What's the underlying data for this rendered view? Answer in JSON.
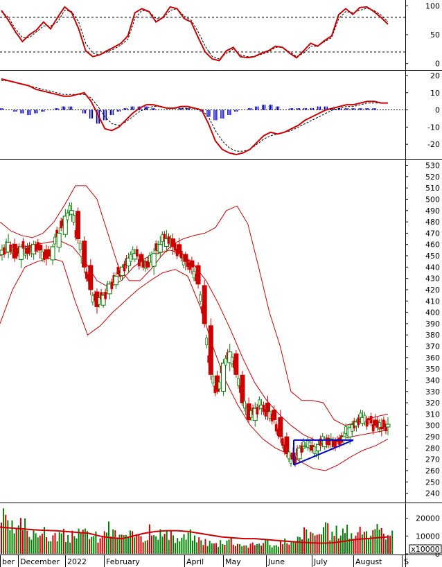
{
  "chart_data": [
    {
      "panel": "stochastic-oscillator",
      "type": "line",
      "yticks": [
        0,
        50,
        100
      ],
      "ylim": [
        -10,
        110
      ],
      "reference_lines": [
        20,
        80
      ],
      "series": [
        {
          "color": "#cc0000",
          "values": [
            92,
            75,
            55,
            38,
            50,
            58,
            72,
            60,
            80,
            98,
            88,
            60,
            22,
            12,
            15,
            22,
            28,
            35,
            48,
            88,
            95,
            90,
            72,
            80,
            98,
            95,
            78,
            72,
            45,
            20,
            8,
            5,
            22,
            28,
            12,
            10,
            12,
            18,
            22,
            30,
            28,
            18,
            10,
            22,
            35,
            30,
            40,
            48,
            85,
            95,
            85,
            97,
            98,
            90,
            80,
            68
          ]
        },
        {
          "color": "#000000",
          "values": [
            90,
            80,
            60,
            45,
            45,
            55,
            65,
            65,
            72,
            92,
            90,
            72,
            35,
            18,
            15,
            20,
            25,
            32,
            42,
            78,
            92,
            90,
            78,
            78,
            92,
            95,
            82,
            75,
            55,
            30,
            12,
            8,
            18,
            25,
            15,
            12,
            12,
            16,
            20,
            28,
            28,
            20,
            12,
            18,
            30,
            30,
            38,
            45,
            78,
            90,
            88,
            92,
            96,
            92,
            84,
            72
          ]
        }
      ]
    },
    {
      "panel": "macd",
      "type": "line",
      "yticks": [
        -20,
        -10,
        0,
        10,
        20
      ],
      "ylim": [
        -28,
        22
      ],
      "series": [
        {
          "color": "#cc0000",
          "values": [
            18,
            17,
            16,
            15,
            14,
            12,
            11,
            10,
            9,
            8,
            8,
            9,
            10,
            5,
            -3,
            -11,
            -12,
            -10,
            -6,
            -2,
            1,
            3,
            3,
            2,
            1,
            1,
            2,
            2,
            1,
            0,
            -8,
            -18,
            -23,
            -25,
            -26,
            -25,
            -23,
            -19,
            -15,
            -13,
            -14,
            -13,
            -11,
            -9,
            -6,
            -4,
            -2,
            0,
            1,
            2,
            3,
            3,
            4,
            5,
            5,
            4,
            4
          ]
        },
        {
          "color": "#000000",
          "values": [
            17,
            17,
            16,
            15,
            14,
            13,
            12,
            11,
            10,
            9,
            9,
            9,
            9,
            7,
            2,
            -4,
            -8,
            -9,
            -7,
            -4,
            -1,
            1,
            2,
            2,
            1,
            1,
            1,
            1,
            1,
            0,
            -4,
            -12,
            -18,
            -22,
            -24,
            -24,
            -23,
            -20,
            -17,
            -15,
            -14,
            -13,
            -12,
            -10,
            -8,
            -6,
            -4,
            -2,
            0,
            1,
            2,
            2,
            3,
            4,
            4,
            4,
            4
          ]
        },
        {
          "color": "#0000cc",
          "type": "bar",
          "values": [
            1,
            0,
            -1,
            -2,
            -3,
            -2,
            -1,
            0,
            1,
            2,
            2,
            0,
            -2,
            -5,
            -8,
            -6,
            -3,
            -1,
            1,
            2,
            2,
            2,
            1,
            0,
            0,
            0,
            1,
            1,
            0,
            -1,
            -4,
            -6,
            -5,
            -3,
            -1,
            0,
            1,
            2,
            3,
            3,
            2,
            0,
            1,
            1,
            1,
            1,
            2,
            2,
            1,
            1,
            1,
            1,
            1,
            1,
            1,
            0,
            0
          ]
        }
      ]
    },
    {
      "panel": "price-candlestick",
      "type": "candlestick",
      "yticks": [
        240,
        250,
        260,
        270,
        280,
        290,
        300,
        310,
        320,
        330,
        340,
        350,
        360,
        370,
        380,
        390,
        400,
        410,
        420,
        430,
        440,
        450,
        460,
        470,
        480,
        490,
        500,
        510,
        520,
        530
      ],
      "ylim": [
        233,
        534
      ],
      "close": [
        455,
        462,
        448,
        458,
        452,
        460,
        455,
        448,
        458,
        470,
        485,
        490,
        465,
        440,
        420,
        405,
        415,
        425,
        432,
        440,
        448,
        452,
        445,
        440,
        452,
        460,
        465,
        458,
        452,
        445,
        440,
        425,
        390,
        345,
        330,
        355,
        365,
        345,
        320,
        305,
        315,
        318,
        312,
        305,
        290,
        275,
        270,
        280,
        282,
        278,
        283,
        287,
        288,
        286,
        290,
        298,
        303,
        307,
        305,
        300,
        297,
        301
      ],
      "bollinger": [
        {
          "color": "#cc0000",
          "values": [
            480,
            472,
            468,
            466,
            470,
            480,
            495,
            512,
            512,
            500,
            470,
            440,
            428,
            428,
            438,
            450,
            460,
            465,
            468,
            470,
            475,
            490,
            494,
            478,
            440,
            400,
            370,
            330,
            322,
            322,
            320,
            305,
            300,
            302,
            305,
            308,
            310
          ]
        },
        {
          "color": "#cc0000",
          "values": [
            450,
            455,
            458,
            460,
            462,
            463,
            458,
            445,
            428,
            422,
            428,
            440,
            448,
            452,
            455,
            452,
            442,
            428,
            408,
            385,
            360,
            338,
            322,
            310,
            300,
            292,
            287,
            286,
            288,
            290,
            292,
            294,
            296
          ]
        },
        {
          "color": "#cc0000",
          "values": [
            390,
            420,
            440,
            445,
            448,
            445,
            410,
            380,
            388,
            400,
            410,
            420,
            428,
            435,
            438,
            432,
            405,
            370,
            340,
            318,
            300,
            288,
            280,
            275,
            268,
            262,
            260,
            265,
            272,
            278,
            282,
            288
          ]
        }
      ],
      "pattern": {
        "type": "triangle",
        "color": "#0000cc",
        "points": [
          [
            "Jun",
            287
          ],
          [
            "Jul-end",
            287
          ],
          [
            "Jun",
            265
          ]
        ]
      }
    },
    {
      "panel": "volume",
      "type": "bar",
      "unit": "x10000",
      "unit_label": "x10000",
      "yticks": [
        0,
        10000,
        20000
      ],
      "ytick_labels": [
        "0",
        "10000",
        "20000"
      ],
      "ylim": [
        0,
        28000
      ],
      "values": [
        22000,
        16000,
        14000,
        18000,
        12000,
        15000,
        13000,
        10000,
        11000,
        12000,
        9000,
        14000,
        12000,
        13000,
        11000,
        9000,
        16000,
        13000,
        12000,
        10000,
        11000,
        14000,
        10000,
        17000,
        13000,
        12000,
        11000,
        9000,
        10000,
        12000,
        9000,
        8000,
        7000,
        6000,
        8000,
        9000,
        7000,
        6000,
        5000,
        6000,
        7000,
        8000,
        5000,
        6000,
        8000,
        7000,
        9000,
        14000,
        11000,
        13000,
        15000,
        12000,
        14000,
        16000,
        12000,
        13000,
        15000,
        12000,
        14000,
        13000,
        15000
      ],
      "moving_average": {
        "color": "#cc0000",
        "values": [
          15000,
          14500,
          14000,
          13500,
          13200,
          13000,
          12500,
          12000,
          11500,
          10000,
          9000,
          8500,
          10000,
          11500,
          12500,
          13000,
          13000,
          12500,
          11500,
          10500,
          9500,
          9000,
          8500,
          8500,
          8000,
          7500,
          7000,
          6500,
          6200,
          6000,
          6200,
          7000,
          8000,
          8500,
          9000,
          9500
        ]
      }
    }
  ],
  "date_axis": {
    "labels": [
      "ber",
      "December",
      "2022",
      "February",
      "April",
      "May",
      "June",
      "July",
      "August",
      "S"
    ]
  },
  "colors": {
    "grid": "#000000",
    "bull": "#008000",
    "bear": "#cc0000",
    "signal_blue": "#0000cc"
  }
}
